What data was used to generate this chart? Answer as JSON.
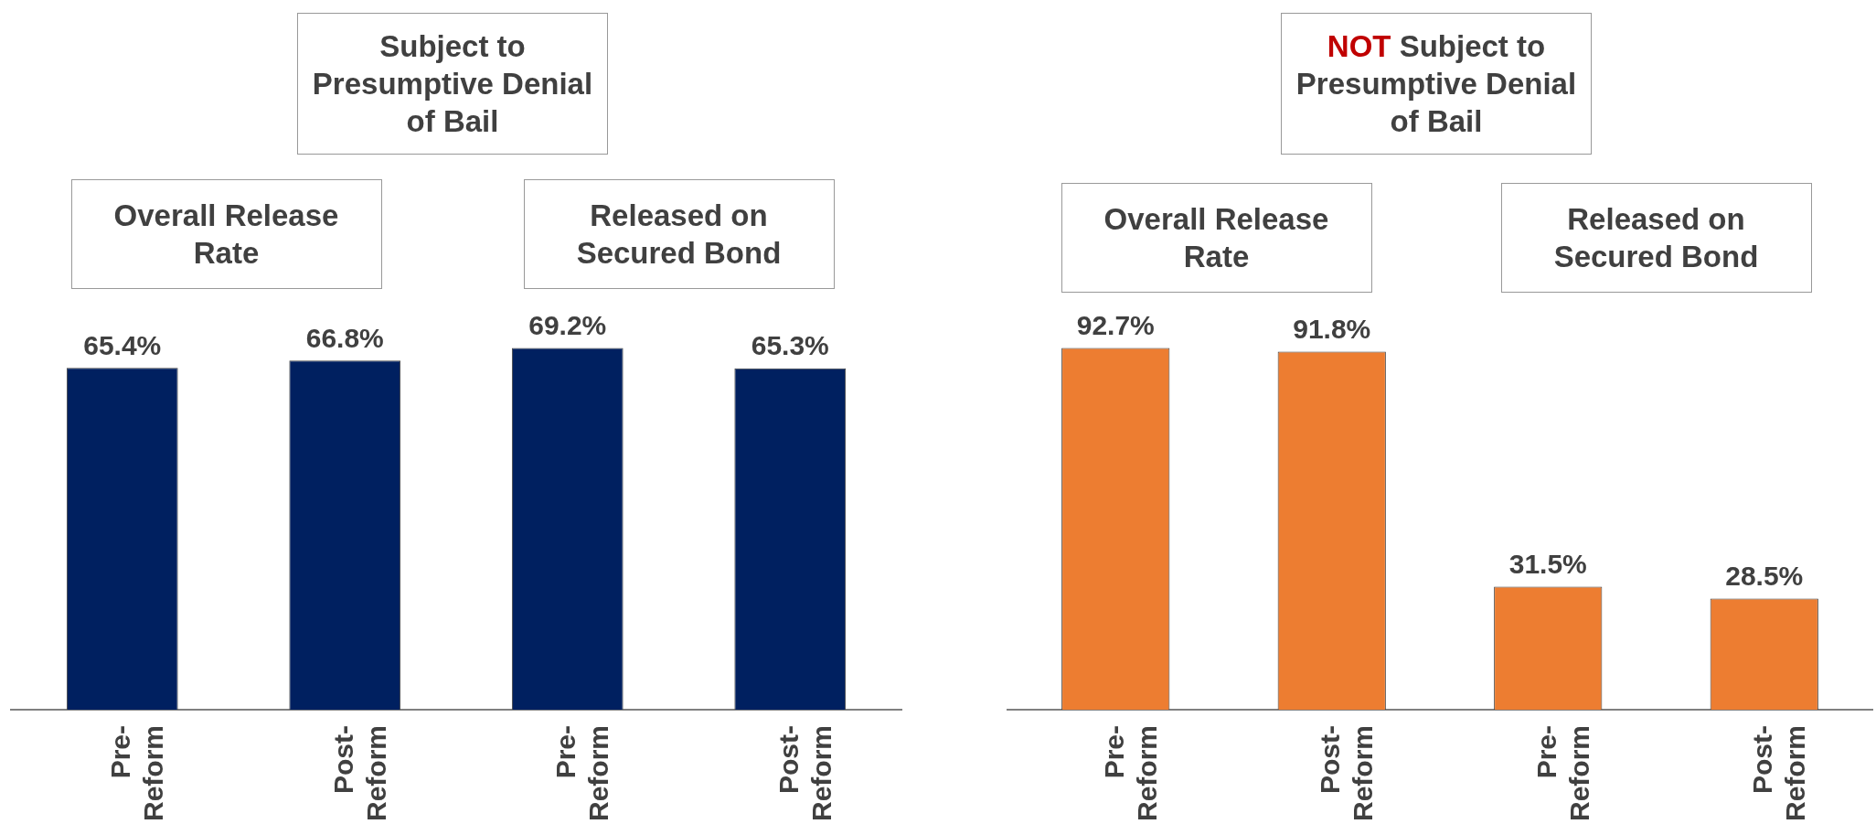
{
  "chart_data": [
    {
      "type": "bar",
      "title": "Subject to Presumptive Denial of Bail",
      "categories": [
        "Pre-Reform",
        "Post-Reform",
        "Pre-Reform",
        "Post-Reform"
      ],
      "values": [
        65.4,
        66.8,
        69.2,
        65.3
      ],
      "value_labels": [
        "65.4%",
        "66.8%",
        "69.2%",
        "65.3%"
      ],
      "color": "#002060",
      "annotations": [
        "Overall Release Rate",
        "Released on Secured Bond"
      ],
      "grid": false,
      "legend": false,
      "tick_labels": "x"
    },
    {
      "type": "bar",
      "title": "NOT Subject to Presumptive Denial of Bail",
      "categories": [
        "Pre-Reform",
        "Post-Reform",
        "Pre-Reform",
        "Post-Reform"
      ],
      "values": [
        92.7,
        91.8,
        31.5,
        28.5
      ],
      "value_labels": [
        "92.7%",
        "91.8%",
        "31.5%",
        "28.5%"
      ],
      "color": "#ed7d31",
      "annotations": [
        "Overall Release Rate",
        "Released on Secured Bond"
      ],
      "grid": false,
      "legend": false,
      "tick_labels": "x"
    }
  ]
}
